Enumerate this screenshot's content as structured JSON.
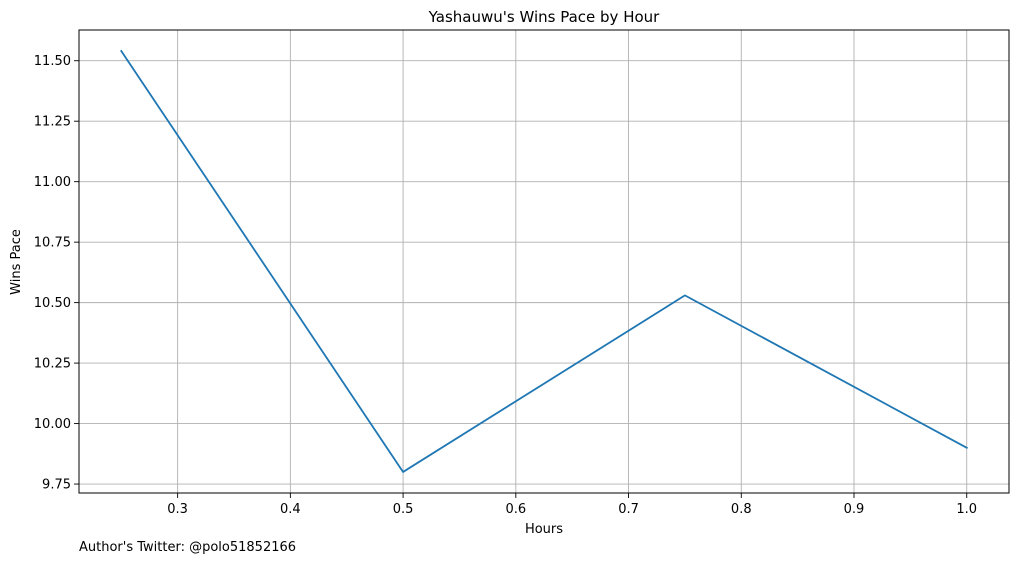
{
  "chart_data": {
    "type": "line",
    "title": "Yashauwu's Wins Pace by Hour",
    "xlabel": "Hours",
    "ylabel": "Wins Pace",
    "xlim": [
      0.2125,
      1.0375
    ],
    "ylim": [
      9.713,
      11.627
    ],
    "x_ticks": [
      0.3,
      0.4,
      0.5,
      0.6,
      0.7,
      0.8,
      0.9,
      1.0
    ],
    "x_tick_labels": [
      "0.3",
      "0.4",
      "0.5",
      "0.6",
      "0.7",
      "0.8",
      "0.9",
      "1.0"
    ],
    "y_ticks": [
      9.75,
      10.0,
      10.25,
      10.5,
      10.75,
      11.0,
      11.25,
      11.5
    ],
    "y_tick_labels": [
      "9.75",
      "10.00",
      "10.25",
      "10.50",
      "10.75",
      "11.00",
      "11.25",
      "11.50"
    ],
    "grid": true,
    "series": [
      {
        "x": [
          0.25,
          0.5,
          0.75,
          1.0
        ],
        "values": [
          11.54,
          9.8,
          10.53,
          9.9
        ],
        "color": "#1f77b4"
      }
    ]
  },
  "footnote": "Author's Twitter: @polo51852166"
}
